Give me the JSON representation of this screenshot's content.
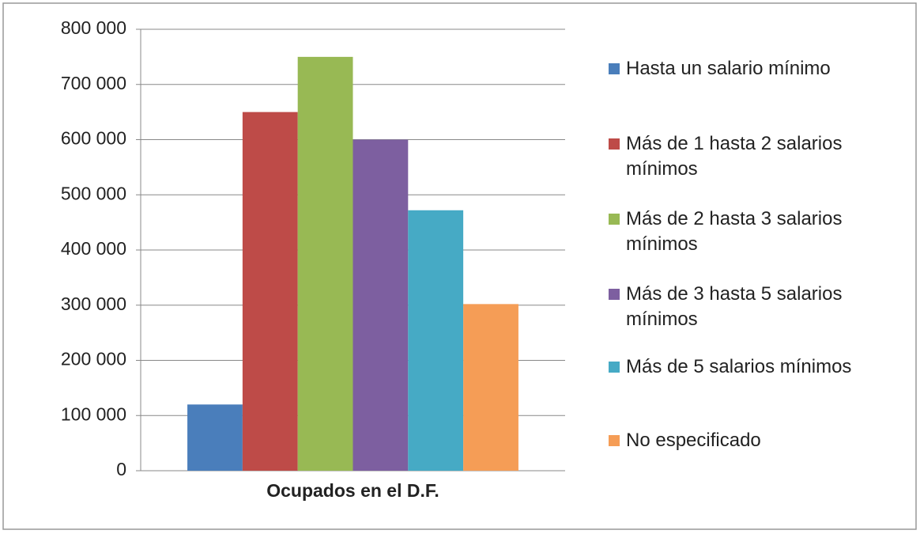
{
  "chart_data": {
    "type": "bar",
    "categories": [
      "Ocupados en el D.F."
    ],
    "series": [
      {
        "name": "Hasta un salario mínimo",
        "color": "#4a7ebb",
        "values": [
          120000
        ]
      },
      {
        "name": "Más de 1 hasta 2 salarios mínimos",
        "color": "#be4b48",
        "values": [
          650000
        ]
      },
      {
        "name": "Más de 2 hasta 3 salarios mínimos",
        "color": "#98b954",
        "values": [
          750000
        ]
      },
      {
        "name": "Más de 3 hasta 5 salarios mínimos",
        "color": "#7d5fa0",
        "values": [
          600000
        ]
      },
      {
        "name": "Más de 5 salarios mínimos",
        "color": "#46aac5",
        "values": [
          472000
        ]
      },
      {
        "name": "No especificado",
        "color": "#f59d56",
        "values": [
          302000
        ]
      }
    ],
    "ylim": [
      0,
      800000
    ],
    "yticks": [
      0,
      {
        "value": 100000,
        "label": "100 000"
      },
      {
        "value": 200000,
        "label": "200 000"
      },
      {
        "value": 300000,
        "label": "300 000"
      },
      {
        "value": 400000,
        "label": "400 000"
      },
      {
        "value": 500000,
        "label": "500 000"
      },
      {
        "value": 600000,
        "label": "600 000"
      },
      {
        "value": 700000,
        "label": "700 000"
      },
      {
        "value": 800000,
        "label": "800 000"
      }
    ],
    "grid": true,
    "legend": "right"
  }
}
